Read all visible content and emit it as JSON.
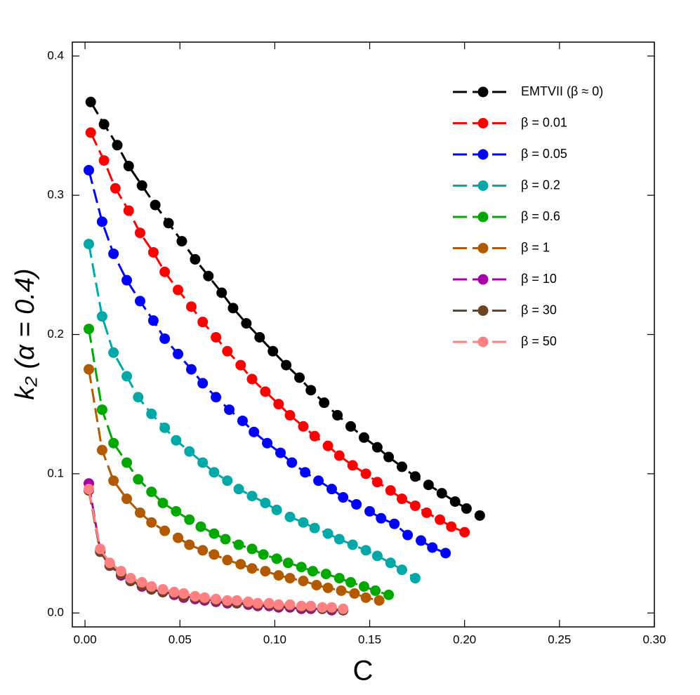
{
  "chart_data": {
    "type": "line",
    "x_label": "C",
    "y_label": "k₂ (α = 0.4)",
    "xlim": [
      -0.0067,
      0.3
    ],
    "ylim": [
      -0.01,
      0.41
    ],
    "xticks": [
      {
        "value": 0,
        "label": "0.00"
      },
      {
        "value": 0.05,
        "label": "0.05"
      },
      {
        "value": 0.1,
        "label": "0.10"
      },
      {
        "value": 0.15,
        "label": "0.15"
      },
      {
        "value": 0.2,
        "label": "0.20"
      },
      {
        "value": 0.25,
        "label": "0.25"
      },
      {
        "value": 0.3,
        "label": "0.30"
      }
    ],
    "yticks": [
      {
        "value": 0,
        "label": "0.0"
      },
      {
        "value": 0.1,
        "label": "0.1"
      },
      {
        "value": 0.2,
        "label": "0.2"
      },
      {
        "value": 0.3,
        "label": "0.3"
      },
      {
        "value": 0.4,
        "label": "0.4"
      }
    ],
    "legend": "upper right",
    "series": [
      {
        "name": "EMTVII (β ≈ 0)",
        "color": "#000000",
        "x": [
          0.003,
          0.01,
          0.017,
          0.023,
          0.03,
          0.037,
          0.044,
          0.051,
          0.058,
          0.065,
          0.072,
          0.078,
          0.085,
          0.092,
          0.099,
          0.106,
          0.113,
          0.119,
          0.126,
          0.133,
          0.14,
          0.147,
          0.154,
          0.16,
          0.167,
          0.174,
          0.181,
          0.188,
          0.195,
          0.201,
          0.208
        ],
        "values": [
          0.367,
          0.351,
          0.336,
          0.321,
          0.307,
          0.293,
          0.28,
          0.267,
          0.254,
          0.242,
          0.23,
          0.219,
          0.208,
          0.198,
          0.188,
          0.178,
          0.169,
          0.16,
          0.151,
          0.142,
          0.134,
          0.126,
          0.119,
          0.112,
          0.105,
          0.098,
          0.092,
          0.086,
          0.08,
          0.075,
          0.07
        ]
      },
      {
        "name": " β = 0.01",
        "color": "#ff0000",
        "x": [
          0.003,
          0.01,
          0.016,
          0.023,
          0.029,
          0.036,
          0.042,
          0.049,
          0.056,
          0.062,
          0.069,
          0.075,
          0.082,
          0.088,
          0.095,
          0.102,
          0.108,
          0.115,
          0.121,
          0.128,
          0.134,
          0.141,
          0.148,
          0.154,
          0.161,
          0.167,
          0.174,
          0.18,
          0.187,
          0.193,
          0.2
        ],
        "values": [
          0.345,
          0.325,
          0.305,
          0.289,
          0.273,
          0.259,
          0.245,
          0.232,
          0.22,
          0.209,
          0.198,
          0.188,
          0.178,
          0.168,
          0.159,
          0.15,
          0.142,
          0.134,
          0.127,
          0.12,
          0.113,
          0.106,
          0.1,
          0.094,
          0.088,
          0.082,
          0.077,
          0.072,
          0.067,
          0.062,
          0.058
        ]
      },
      {
        "name": "β = 0.05",
        "color": "#0000ff",
        "x": [
          0.002,
          0.009,
          0.015,
          0.022,
          0.029,
          0.036,
          0.042,
          0.049,
          0.056,
          0.062,
          0.069,
          0.076,
          0.083,
          0.089,
          0.096,
          0.103,
          0.109,
          0.116,
          0.123,
          0.13,
          0.136,
          0.143,
          0.15,
          0.156,
          0.163,
          0.17,
          0.177,
          0.183,
          0.19
        ],
        "values": [
          0.318,
          0.281,
          0.258,
          0.239,
          0.224,
          0.21,
          0.197,
          0.186,
          0.175,
          0.165,
          0.155,
          0.146,
          0.138,
          0.13,
          0.122,
          0.115,
          0.108,
          0.101,
          0.095,
          0.089,
          0.083,
          0.078,
          0.073,
          0.068,
          0.064,
          0.056,
          0.052,
          0.047,
          0.043
        ]
      },
      {
        "name": "β = 0.2",
        "color": "#00a8a8",
        "x": [
          0.002,
          0.009,
          0.015,
          0.022,
          0.028,
          0.035,
          0.042,
          0.048,
          0.055,
          0.062,
          0.068,
          0.075,
          0.081,
          0.088,
          0.095,
          0.101,
          0.108,
          0.115,
          0.121,
          0.128,
          0.134,
          0.141,
          0.148,
          0.154,
          0.161,
          0.167,
          0.174
        ],
        "values": [
          0.265,
          0.213,
          0.187,
          0.17,
          0.155,
          0.143,
          0.133,
          0.124,
          0.116,
          0.108,
          0.101,
          0.095,
          0.089,
          0.084,
          0.079,
          0.074,
          0.069,
          0.065,
          0.061,
          0.057,
          0.053,
          0.049,
          0.045,
          0.041,
          0.036,
          0.031,
          0.025
        ]
      },
      {
        "name": "β = 0.6",
        "color": "#00a800",
        "x": [
          0.002,
          0.009,
          0.015,
          0.022,
          0.028,
          0.035,
          0.041,
          0.048,
          0.055,
          0.061,
          0.068,
          0.074,
          0.081,
          0.088,
          0.094,
          0.101,
          0.107,
          0.114,
          0.12,
          0.127,
          0.134,
          0.14,
          0.147,
          0.153,
          0.16
        ],
        "values": [
          0.204,
          0.146,
          0.122,
          0.108,
          0.096,
          0.087,
          0.079,
          0.073,
          0.067,
          0.062,
          0.057,
          0.053,
          0.049,
          0.046,
          0.042,
          0.039,
          0.036,
          0.033,
          0.03,
          0.028,
          0.025,
          0.022,
          0.019,
          0.016,
          0.013
        ]
      },
      {
        "name": "β = 1",
        "color": "#b35900",
        "x": [
          0.002,
          0.009,
          0.015,
          0.022,
          0.029,
          0.035,
          0.042,
          0.049,
          0.055,
          0.062,
          0.068,
          0.075,
          0.082,
          0.088,
          0.095,
          0.102,
          0.108,
          0.115,
          0.122,
          0.128,
          0.135,
          0.142,
          0.148,
          0.155
        ],
        "values": [
          0.175,
          0.117,
          0.095,
          0.082,
          0.072,
          0.065,
          0.059,
          0.054,
          0.049,
          0.045,
          0.042,
          0.038,
          0.035,
          0.032,
          0.03,
          0.027,
          0.025,
          0.023,
          0.02,
          0.018,
          0.016,
          0.014,
          0.011,
          0.009
        ]
      },
      {
        "name": "β = 10",
        "color": "#a800a8",
        "x": [
          0.002,
          0.008,
          0.013,
          0.019,
          0.024,
          0.03,
          0.035,
          0.041,
          0.047,
          0.052,
          0.058,
          0.063,
          0.069,
          0.075,
          0.08,
          0.086,
          0.091,
          0.097,
          0.102,
          0.108,
          0.114,
          0.119,
          0.125,
          0.13,
          0.136
        ],
        "values": [
          0.093,
          0.045,
          0.034,
          0.027,
          0.023,
          0.019,
          0.017,
          0.015,
          0.013,
          0.011,
          0.01,
          0.009,
          0.008,
          0.007,
          0.007,
          0.006,
          0.005,
          0.005,
          0.004,
          0.004,
          0.003,
          0.003,
          0.003,
          0.002,
          0.002
        ]
      },
      {
        "name": "β = 30",
        "color": "#6b4423",
        "x": [
          0.002,
          0.008,
          0.013,
          0.019,
          0.024,
          0.03,
          0.035,
          0.041,
          0.047,
          0.052,
          0.058,
          0.063,
          0.069,
          0.075,
          0.08,
          0.086,
          0.091,
          0.097,
          0.102,
          0.108,
          0.114,
          0.119,
          0.125,
          0.13,
          0.136
        ],
        "values": [
          0.088,
          0.044,
          0.034,
          0.028,
          0.023,
          0.02,
          0.017,
          0.015,
          0.014,
          0.012,
          0.011,
          0.01,
          0.009,
          0.008,
          0.007,
          0.007,
          0.006,
          0.006,
          0.005,
          0.005,
          0.004,
          0.004,
          0.003,
          0.003,
          0.002
        ]
      },
      {
        "name": "β = 50",
        "color": "#ff8080",
        "x": [
          0.002,
          0.008,
          0.013,
          0.019,
          0.024,
          0.03,
          0.035,
          0.041,
          0.047,
          0.052,
          0.058,
          0.063,
          0.069,
          0.075,
          0.08,
          0.086,
          0.091,
          0.097,
          0.102,
          0.108,
          0.114,
          0.119,
          0.125,
          0.13,
          0.136
        ],
        "values": [
          0.089,
          0.046,
          0.036,
          0.03,
          0.025,
          0.022,
          0.019,
          0.017,
          0.015,
          0.014,
          0.012,
          0.011,
          0.01,
          0.009,
          0.009,
          0.008,
          0.007,
          0.007,
          0.006,
          0.006,
          0.005,
          0.005,
          0.004,
          0.004,
          0.003
        ]
      }
    ]
  }
}
